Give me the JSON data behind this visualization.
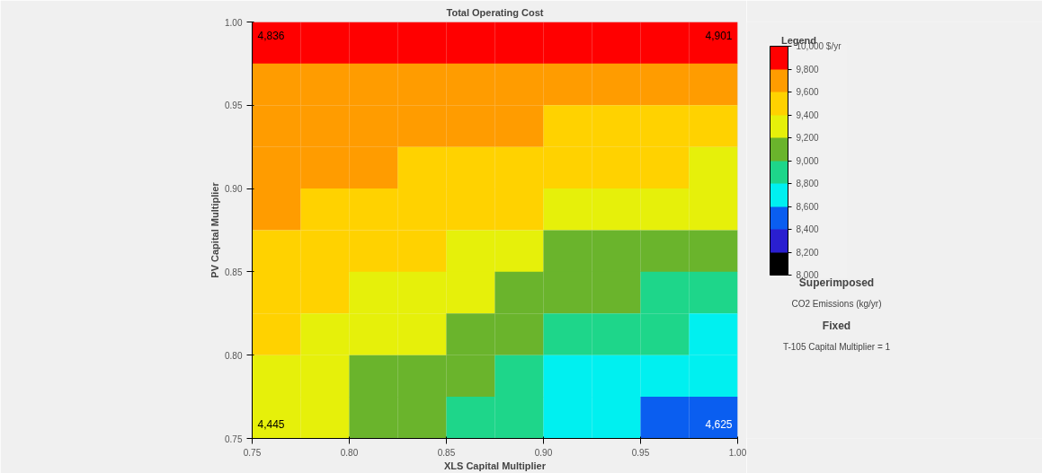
{
  "chart_data": {
    "type": "heatmap",
    "title": "Total Operating Cost",
    "xlabel": "XLS Capital Multiplier",
    "ylabel": "PV Capital Multiplier",
    "legend_title": "Legend",
    "x": [
      0.7625,
      0.7875,
      0.8125,
      0.8375,
      0.8625,
      0.8875,
      0.9125,
      0.9375,
      0.9625,
      0.9875
    ],
    "y": [
      0.9875,
      0.9625,
      0.9375,
      0.9125,
      0.8875,
      0.8625,
      0.8375,
      0.8125,
      0.7875,
      0.7625
    ],
    "cells": [
      [
        9900,
        9900,
        9900,
        9900,
        9900,
        9900,
        9900,
        9900,
        9900,
        9900
      ],
      [
        9700,
        9700,
        9700,
        9700,
        9700,
        9700,
        9700,
        9700,
        9700,
        9700
      ],
      [
        9700,
        9700,
        9700,
        9700,
        9700,
        9700,
        9500,
        9500,
        9500,
        9500
      ],
      [
        9700,
        9700,
        9700,
        9500,
        9500,
        9500,
        9500,
        9500,
        9500,
        9300
      ],
      [
        9700,
        9500,
        9500,
        9500,
        9500,
        9500,
        9300,
        9300,
        9300,
        9300
      ],
      [
        9500,
        9500,
        9500,
        9500,
        9300,
        9300,
        9100,
        9100,
        9100,
        9100
      ],
      [
        9500,
        9500,
        9300,
        9300,
        9300,
        9100,
        9100,
        9100,
        8900,
        8900
      ],
      [
        9500,
        9300,
        9300,
        9300,
        9100,
        9100,
        8900,
        8900,
        8900,
        8700
      ],
      [
        9300,
        9300,
        9100,
        9100,
        9100,
        8900,
        8700,
        8700,
        8700,
        8700
      ],
      [
        9300,
        9300,
        9100,
        9100,
        8900,
        8900,
        8700,
        8700,
        8500,
        8500
      ]
    ],
    "colors": [
      "#000000",
      "#2a1fd0",
      "#0a5ef0",
      "#00f0f0",
      "#1ed68a",
      "#6ab42c",
      "#e6f00a",
      "#ffd200",
      "#ff9c00",
      "#ff0000"
    ],
    "clim": [
      8000,
      10000
    ],
    "cticks": [
      {
        "value": 8000,
        "label": "8,000"
      },
      {
        "value": 8200,
        "label": "8,200"
      },
      {
        "value": 8400,
        "label": "8,400"
      },
      {
        "value": 8600,
        "label": "8,600"
      },
      {
        "value": 8800,
        "label": "8,800"
      },
      {
        "value": 9000,
        "label": "9,000"
      },
      {
        "value": 9200,
        "label": "9,200"
      },
      {
        "value": 9400,
        "label": "9,400"
      },
      {
        "value": 9600,
        "label": "9,600"
      },
      {
        "value": 9800,
        "label": "9,800"
      },
      {
        "value": 10000,
        "label": "10,000 $/yr"
      }
    ],
    "xlim": [
      0.75,
      1.0
    ],
    "ylim": [
      0.75,
      1.0
    ],
    "xticks": [
      0.75,
      {
        "value": 0.8,
        "label": "0.80"
      },
      0.85,
      {
        "value": 0.9,
        "label": "0.90"
      },
      0.95,
      {
        "value": 1.0,
        "label": "1.00"
      }
    ],
    "yticks": [
      0.75,
      {
        "value": 0.8,
        "label": "0.80"
      },
      0.85,
      {
        "value": 0.9,
        "label": "0.90"
      },
      0.95,
      {
        "value": 1.0,
        "label": "1.00"
      }
    ],
    "annotations": [
      "4,836",
      "4,901",
      "4,445",
      "4,625",
      "Superimposed",
      "CO2 Emissions (kg/yr)",
      "Fixed",
      "T-105 Capital Multiplier = 1"
    ]
  }
}
